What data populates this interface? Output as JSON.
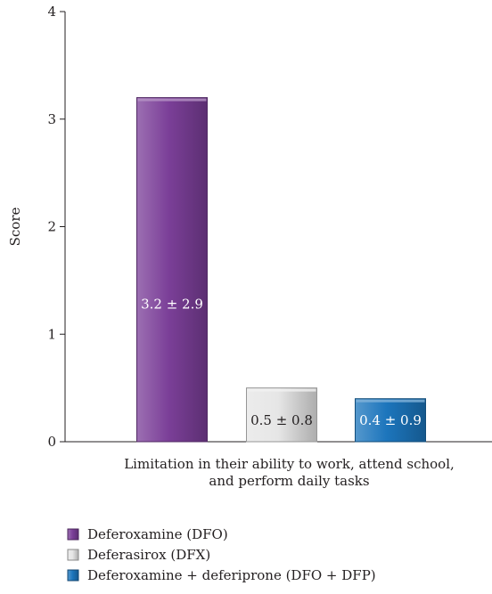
{
  "chart_data": {
    "type": "bar",
    "title": "",
    "xlabel_lines": [
      "Limitation in their ability to work, attend school,",
      "and perform daily tasks"
    ],
    "ylabel": "Score",
    "ylim": [
      0,
      4
    ],
    "yticks": [
      0,
      1,
      2,
      3,
      4
    ],
    "grid": false,
    "legend_position": "bottom-left",
    "series": [
      {
        "name": "Deferoxamine (DFO)",
        "value": 3.2,
        "label": "3.2 ± 2.9",
        "color": "#7b3f98",
        "label_color": "#ffffff"
      },
      {
        "name": "Deferasirox (DFX)",
        "value": 0.5,
        "label": "0.5 ± 0.8",
        "color": "#e6e6e6",
        "label_color": "#231f20"
      },
      {
        "name": "Deferoxamine + deferiprone (DFO + DFP)",
        "value": 0.4,
        "label": "0.4 ± 0.9",
        "color": "#1c75bc",
        "label_color": "#ffffff"
      }
    ]
  }
}
